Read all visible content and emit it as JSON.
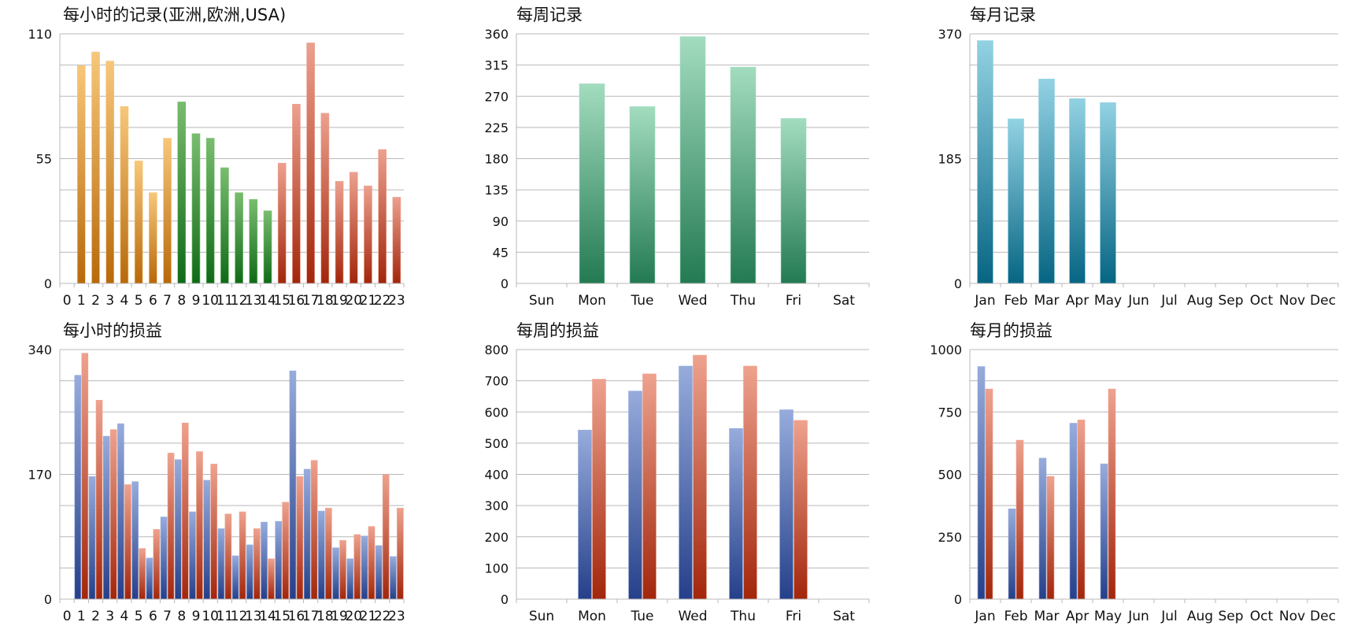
{
  "colors": {
    "orange_top": "#f7c77a",
    "orange_bottom": "#b8690a",
    "green_top": "#79bd6f",
    "green_bottom": "#0f6a17",
    "red_top": "#eca08e",
    "red_bottom": "#a2260b",
    "teal_top": "#a3dcbf",
    "teal_bottom": "#237a52",
    "blue_top": "#92d2e3",
    "blue_bottom": "#066583",
    "navy_top": "#97acdc",
    "navy_bottom": "#25408a",
    "brick_top": "#eea28e",
    "brick_bottom": "#a2260b",
    "grid": "#b8b8b8"
  },
  "chart_data": [
    {
      "type": "bar",
      "title": "每小时的记录(亚洲,欧洲,USA)",
      "xlabel": "",
      "ylabel": "",
      "ylim": [
        0,
        110
      ],
      "yticks": [
        "0",
        "55",
        "110"
      ],
      "grid": true,
      "categories": [
        "0",
        "1",
        "2",
        "3",
        "4",
        "5",
        "6",
        "7",
        "8",
        "9",
        "10",
        "11",
        "12",
        "13",
        "14",
        "15",
        "16",
        "17",
        "18",
        "19",
        "20",
        "21",
        "22",
        "23"
      ],
      "values": [
        0,
        96,
        102,
        98,
        78,
        54,
        40,
        64,
        80,
        66,
        64,
        51,
        40,
        37,
        32,
        53,
        79,
        106,
        75,
        45,
        49,
        43,
        59,
        38
      ],
      "bar_colors": [
        "orange",
        "orange",
        "orange",
        "orange",
        "orange",
        "orange",
        "orange",
        "orange",
        "green",
        "green",
        "green",
        "green",
        "green",
        "green",
        "green",
        "red",
        "red",
        "red",
        "red",
        "red",
        "red",
        "red",
        "red",
        "red"
      ]
    },
    {
      "type": "bar",
      "title": "每周记录",
      "xlabel": "",
      "ylabel": "",
      "ylim": [
        0,
        360
      ],
      "yticks": [
        "0",
        "45",
        "90",
        "135",
        "180",
        "225",
        "270",
        "315",
        "360"
      ],
      "grid": true,
      "categories": [
        "Sun",
        "Mon",
        "Tue",
        "Wed",
        "Thu",
        "Fri",
        "Sat"
      ],
      "values": [
        0,
        288,
        255,
        356,
        312,
        238,
        0
      ],
      "bar_colors": [
        "teal",
        "teal",
        "teal",
        "teal",
        "teal",
        "teal",
        "teal"
      ]
    },
    {
      "type": "bar",
      "title": "每月记录",
      "xlabel": "",
      "ylabel": "",
      "ylim": [
        0,
        370
      ],
      "yticks": [
        "0",
        "185",
        "370"
      ],
      "grid": true,
      "categories": [
        "Jan",
        "Feb",
        "Mar",
        "Apr",
        "May",
        "Jun",
        "Jul",
        "Aug",
        "Sep",
        "Oct",
        "Nov",
        "Dec"
      ],
      "values": [
        360,
        244,
        303,
        274,
        268,
        0,
        0,
        0,
        0,
        0,
        0,
        0
      ],
      "bar_colors": [
        "blue",
        "blue",
        "blue",
        "blue",
        "blue",
        "blue",
        "blue",
        "blue",
        "blue",
        "blue",
        "blue",
        "blue"
      ]
    },
    {
      "type": "bar",
      "title": "每小时的损益",
      "xlabel": "",
      "ylabel": "",
      "ylim": [
        0,
        340
      ],
      "yticks": [
        "0",
        "170",
        "340"
      ],
      "grid": true,
      "categories": [
        "0",
        "1",
        "2",
        "3",
        "4",
        "5",
        "6",
        "7",
        "8",
        "9",
        "10",
        "11",
        "12",
        "13",
        "14",
        "15",
        "16",
        "17",
        "18",
        "19",
        "20",
        "21",
        "22",
        "23"
      ],
      "series": [
        {
          "color": "navy",
          "values": [
            0,
            305,
            167,
            222,
            239,
            160,
            56,
            112,
            190,
            119,
            162,
            96,
            59,
            74,
            105,
            106,
            311,
            177,
            120,
            70,
            55,
            86,
            73,
            58
          ]
        },
        {
          "color": "brick",
          "values": [
            0,
            335,
            271,
            231,
            156,
            69,
            95,
            199,
            240,
            201,
            184,
            116,
            119,
            96,
            55,
            132,
            167,
            189,
            124,
            80,
            88,
            99,
            170,
            124
          ]
        }
      ]
    },
    {
      "type": "bar",
      "title": "每周的损益",
      "xlabel": "",
      "ylabel": "",
      "ylim": [
        0,
        800
      ],
      "yticks": [
        "0",
        "100",
        "200",
        "300",
        "400",
        "500",
        "600",
        "700",
        "800"
      ],
      "grid": true,
      "categories": [
        "Sun",
        "Mon",
        "Tue",
        "Wed",
        "Thu",
        "Fri",
        "Sat"
      ],
      "series": [
        {
          "color": "navy",
          "values": [
            0,
            542,
            667,
            747,
            547,
            607,
            0
          ]
        },
        {
          "color": "brick",
          "values": [
            0,
            705,
            722,
            782,
            747,
            573,
            0
          ]
        }
      ]
    },
    {
      "type": "bar",
      "title": "每月的损益",
      "xlabel": "",
      "ylabel": "",
      "ylim": [
        0,
        1000
      ],
      "yticks": [
        "0",
        "250",
        "500",
        "750",
        "1000"
      ],
      "grid": true,
      "categories": [
        "Jan",
        "Feb",
        "Mar",
        "Apr",
        "May",
        "Jun",
        "Jul",
        "Aug",
        "Sep",
        "Oct",
        "Nov",
        "Dec"
      ],
      "series": [
        {
          "color": "navy",
          "values": [
            932,
            362,
            565,
            705,
            542,
            0,
            0,
            0,
            0,
            0,
            0,
            0
          ]
        },
        {
          "color": "brick",
          "values": [
            842,
            637,
            492,
            718,
            842,
            0,
            0,
            0,
            0,
            0,
            0,
            0
          ]
        }
      ]
    }
  ]
}
